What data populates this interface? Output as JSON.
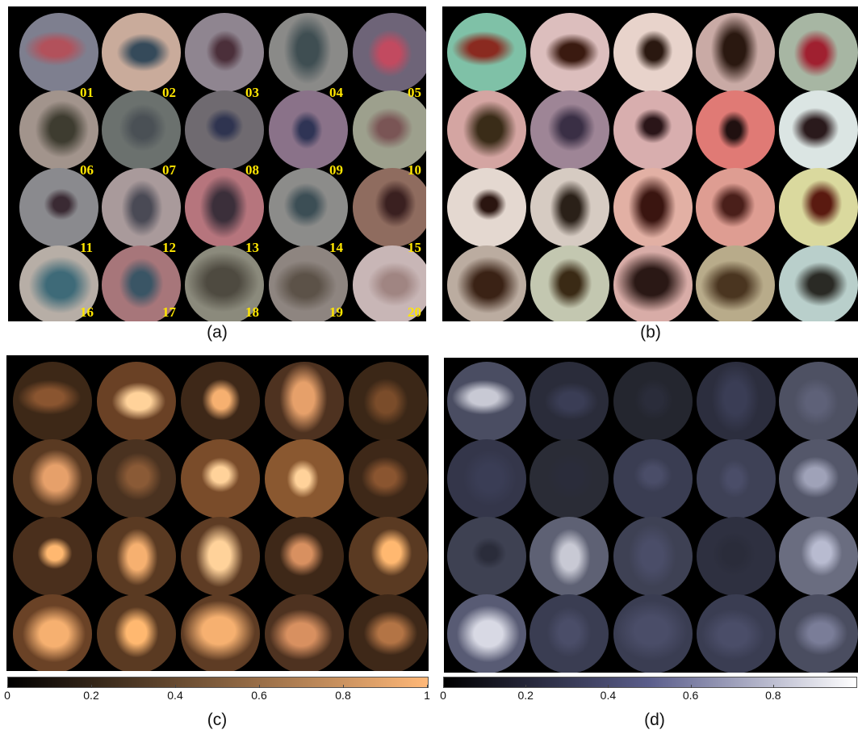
{
  "panels": [
    {
      "id": "a",
      "caption": "(a)",
      "labels": [
        "01",
        "02",
        "03",
        "04",
        "05",
        "06",
        "07",
        "08",
        "09",
        "10",
        "11",
        "12",
        "13",
        "14",
        "15",
        "16",
        "17",
        "18",
        "19",
        "20"
      ],
      "skin_colors": [
        "#7e7f8f",
        "#c9ab9b",
        "#8f8590",
        "#8a8a88",
        "#6e6478",
        "#a2948c",
        "#6b716e",
        "#6f6a70",
        "#8a7289",
        "#9da08d",
        "#8a8a8e",
        "#a99a9b",
        "#b6757d",
        "#8c8c8a",
        "#8f6c5f",
        "#b7aea6",
        "#a7767a",
        "#8b8a7c",
        "#8e8580",
        "#c8b6b6"
      ],
      "lesion_colors": [
        "#b2515b",
        "#354a5a",
        "#4b2f3a",
        "#3f4e52",
        "#c24a60",
        "#3e3c30",
        "#4a5055",
        "#2f3450",
        "#2f3455",
        "#7a5555",
        "#3a2a33",
        "#4a4a55",
        "#3b2f3a",
        "#3c4e55",
        "#3a2020",
        "#3e6a78",
        "#3a5565",
        "#4e4a40",
        "#5c5248",
        "#a08582"
      ]
    },
    {
      "id": "b",
      "caption": "(b)",
      "skin_colors": [
        "#7fc1a7",
        "#dcbebd",
        "#e8d3cb",
        "#c9aaa5",
        "#a7b6a3",
        "#d4a5a2",
        "#9e8596",
        "#d8aeae",
        "#e07a75",
        "#dbe5e3",
        "#e4d8d0",
        "#d6cbc2",
        "#e2b0a4",
        "#de9d92",
        "#dad99e",
        "#bbaca0",
        "#c3c7b0",
        "#d8aca7",
        "#b8ab8a",
        "#b9cfcb"
      ],
      "lesion_colors": [
        "#8a2a20",
        "#3a1a10",
        "#2a1810",
        "#2a1810",
        "#a02030",
        "#3a2c18",
        "#3a2f45",
        "#2a1518",
        "#201010",
        "#2a1a1c",
        "#2a1510",
        "#2a2018",
        "#3a1510",
        "#4a1f1a",
        "#5a1a10",
        "#3a2215",
        "#3a2a15",
        "#2a1815",
        "#4a3520",
        "#2a2a25"
      ]
    },
    {
      "id": "c",
      "caption": "(c)",
      "colorbar": {
        "ticks": [
          "0",
          "0.2",
          "0.4",
          "0.6",
          "0.8",
          "1"
        ],
        "from": "#000000",
        "to": "#ffb878"
      },
      "skin_colors": [
        "#3d2817",
        "#6a4125",
        "#3e2818",
        "#4e3220",
        "#3b2717",
        "#5a3a22",
        "#4a3220",
        "#7a4c2a",
        "#8a5830",
        "#3e2818",
        "#4a2f1c",
        "#5a3a22",
        "#5e3c24",
        "#3e2818",
        "#5a3a22",
        "#6a4226",
        "#5a3a22",
        "#5e3c24",
        "#4e3220",
        "#3e2818"
      ],
      "lesion_colors": [
        "#8a5530",
        "#ffd29a",
        "#f6b070",
        "#e6a06a",
        "#7a4c2a",
        "#e6a06a",
        "#8a5a36",
        "#ffd29a",
        "#ffd29a",
        "#8a5530",
        "#ffb870",
        "#f6b070",
        "#ffd29a",
        "#d89060",
        "#ffb870",
        "#f6b070",
        "#ffb870",
        "#f6b070",
        "#d89060",
        "#b37445"
      ]
    },
    {
      "id": "d",
      "caption": "(d)",
      "colorbar": {
        "ticks": [
          "0",
          "0.2",
          "0.4",
          "0.6",
          "0.8"
        ],
        "from": "#000000",
        "to": "#ffffff",
        "mid": "#5b5e8c"
      },
      "skin_colors": [
        "#4a4d62",
        "#2a2c3a",
        "#24262f",
        "#2c2e3e",
        "#4e5163",
        "#34364a",
        "#2a2c36",
        "#3a3d52",
        "#3e4156",
        "#54576a",
        "#3e4152",
        "#5e6174",
        "#3e4154",
        "#2e3040",
        "#6a6d80",
        "#585b74",
        "#3a3d52",
        "#3a3d52",
        "#3a3d52",
        "#4a4d60"
      ],
      "lesion_colors": [
        "#c8c9d4",
        "#3a3d55",
        "#2a2c3a",
        "#3a3d55",
        "#5e6178",
        "#3a3d55",
        "#2a2c3a",
        "#4a4d68",
        "#4a4d68",
        "#9fa2b8",
        "#2a2c3a",
        "#c8c9d4",
        "#4a4d68",
        "#2a2c3a",
        "#b8bbd0",
        "#d8d9e4",
        "#4a4d68",
        "#4a4d68",
        "#4a4d68",
        "#7a7d98"
      ]
    }
  ]
}
